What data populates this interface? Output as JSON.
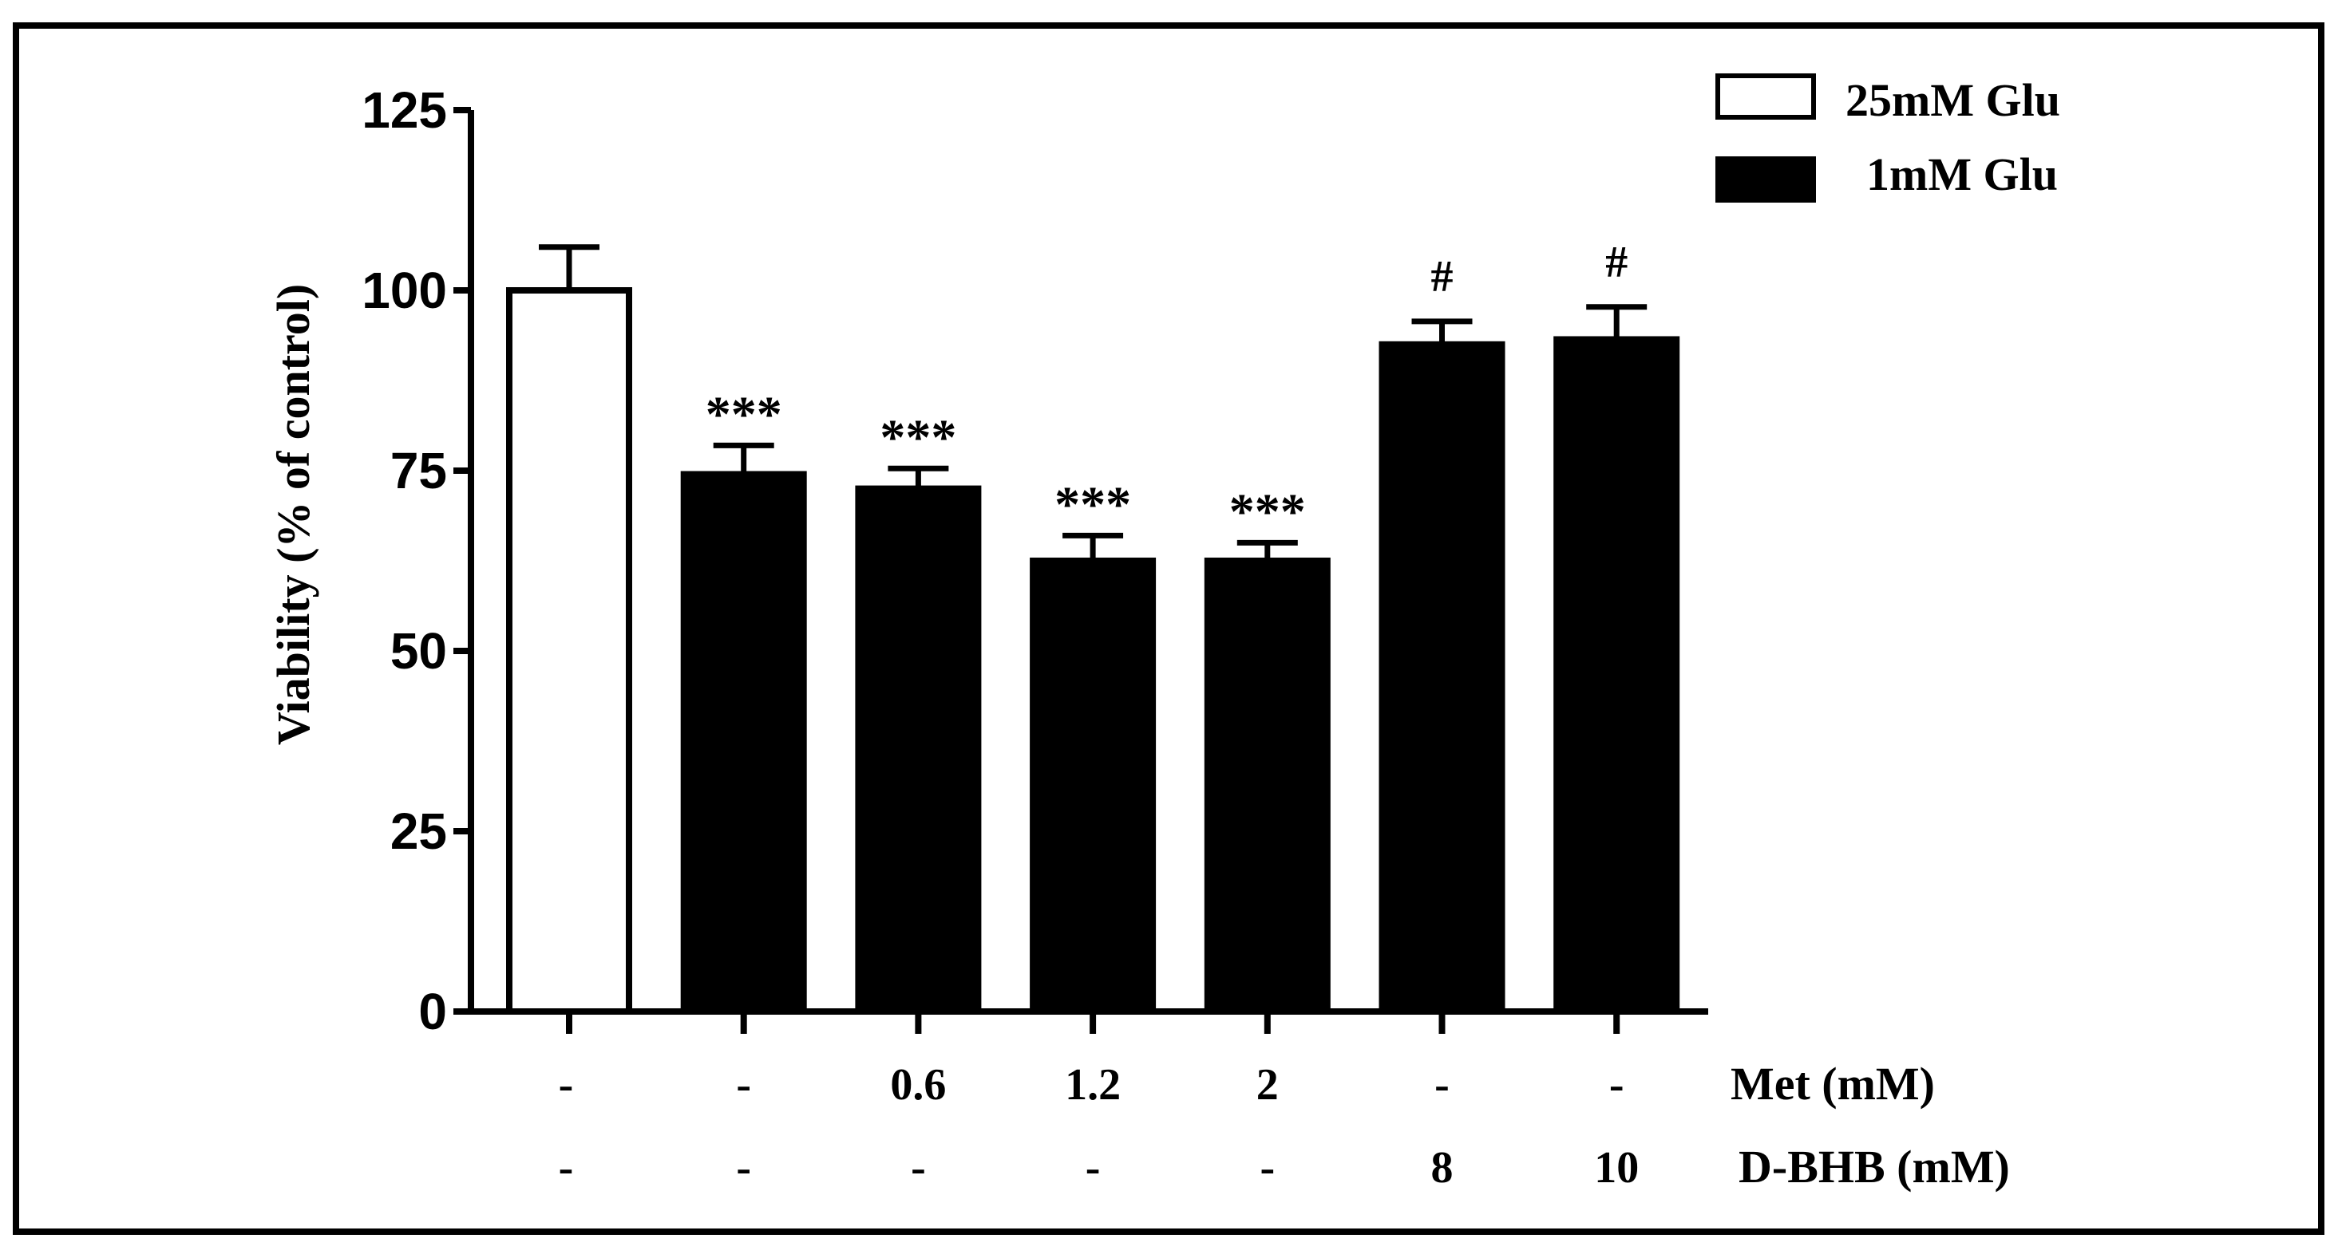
{
  "chart_data": {
    "type": "bar",
    "ylabel": "Viability (% of control)",
    "ylim": [
      0,
      125
    ],
    "yticks": [
      0,
      25,
      50,
      75,
      100,
      125
    ],
    "grid": false,
    "legend": {
      "placement": "top-right",
      "entries": [
        {
          "name": "25mM Glu",
          "fill": "#ffffff"
        },
        {
          "name": "1mM Glu",
          "fill": "#000000"
        }
      ]
    },
    "bars": [
      {
        "value": 100,
        "error": 6,
        "series": "25mM Glu",
        "annotation": ""
      },
      {
        "value": 74.5,
        "error": 4,
        "series": "1mM Glu",
        "annotation": "***"
      },
      {
        "value": 72.5,
        "error": 2.8,
        "series": "1mM Glu",
        "annotation": "***"
      },
      {
        "value": 62.5,
        "error": 3.5,
        "series": "1mM Glu",
        "annotation": "***"
      },
      {
        "value": 62.5,
        "error": 2.5,
        "series": "1mM Glu",
        "annotation": "***"
      },
      {
        "value": 92.5,
        "error": 3.2,
        "series": "1mM Glu",
        "annotation": "#"
      },
      {
        "value": 93.2,
        "error": 4.5,
        "series": "1mM Glu",
        "annotation": "#"
      }
    ],
    "treatment_rows": [
      {
        "label": "Met (mM)",
        "values": [
          "-",
          "-",
          "0.6",
          "1.2",
          "2",
          "-",
          "-"
        ]
      },
      {
        "label": "D-BHB (mM)",
        "values": [
          "-",
          "-",
          "-",
          "-",
          "-",
          "8",
          "10"
        ]
      }
    ]
  }
}
